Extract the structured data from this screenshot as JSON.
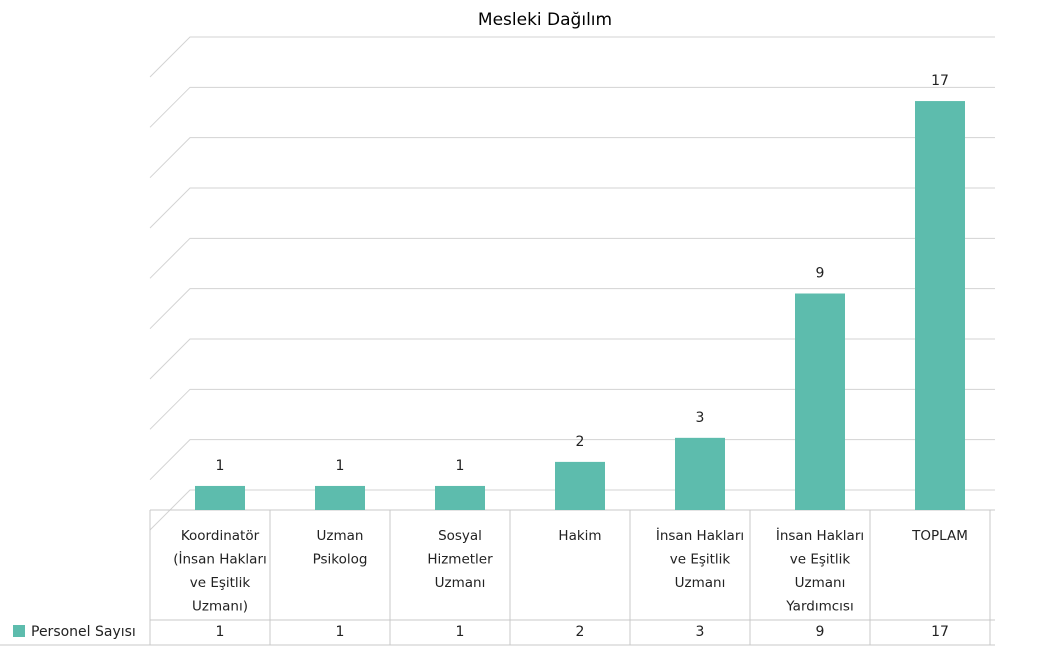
{
  "chart_data": {
    "type": "bar",
    "title": "Mesleki Dağılım",
    "categories": [
      [
        "Koordinatör",
        "(İnsan Hakları",
        "ve Eşitlik",
        "Uzmanı)"
      ],
      [
        "Uzman",
        "Psikolog"
      ],
      [
        "Sosyal",
        "Hizmetler",
        "Uzmanı"
      ],
      [
        "Hakim"
      ],
      [
        "İnsan Hakları",
        "ve Eşitlik",
        "Uzmanı"
      ],
      [
        "İnsan Hakları",
        "ve Eşitlik",
        "Uzmanı",
        "Yardımcısı"
      ],
      [
        "TOPLAM"
      ]
    ],
    "series": [
      {
        "name": "Personel Sayısı",
        "values": [
          1,
          1,
          1,
          2,
          3,
          9,
          17
        ],
        "color": "#5dbcad"
      }
    ],
    "ylim": [
      0,
      18
    ],
    "y_gridlines": 9,
    "grid": true,
    "legend": "data-table-left"
  }
}
